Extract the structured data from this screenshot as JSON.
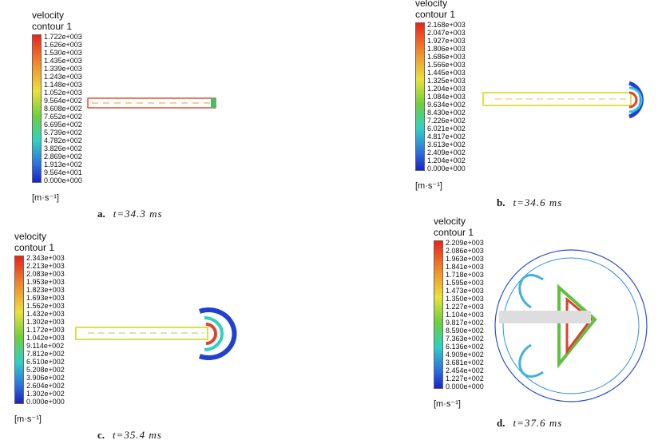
{
  "panels": [
    {
      "legend_title": [
        "velocity",
        "contour 1"
      ],
      "scale": [
        "1.722e+003",
        "1.626e+003",
        "1.530e+003",
        "1.435e+003",
        "1.339e+003",
        "1.243e+003",
        "1.148e+003",
        "1.052e+003",
        "9.564e+002",
        "8.608e+002",
        "7.652e+002",
        "6.695e+002",
        "5.739e+002",
        "4.782e+002",
        "3.826e+002",
        "2.869e+002",
        "1.913e+002",
        "9.564e+001",
        "0.000e+000"
      ],
      "unit": "[m·s⁻¹]",
      "caption": {
        "label": "a.",
        "time": "t=34.3 ms"
      }
    },
    {
      "legend_title": [
        "velocity",
        "contour 1"
      ],
      "scale": [
        "2.168e+003",
        "2.047e+003",
        "1.927e+003",
        "1.806e+003",
        "1.686e+003",
        "1.566e+003",
        "1.445e+003",
        "1.325e+003",
        "1.204e+003",
        "1.084e+003",
        "9.634e+002",
        "8.430e+002",
        "7.226e+002",
        "6.021e+002",
        "4.817e+002",
        "3.613e+002",
        "2.409e+002",
        "1.204e+002",
        "0.000e+000"
      ],
      "unit": "[m·s⁻¹]",
      "caption": {
        "label": "b.",
        "time": "t=34.6 ms"
      }
    },
    {
      "legend_title": [
        "velocity",
        "contour 1"
      ],
      "scale": [
        "2.343e+003",
        "2.213e+003",
        "2.083e+003",
        "1.953e+003",
        "1.823e+003",
        "1.693e+003",
        "1.562e+003",
        "1.432e+003",
        "1.302e+003",
        "1.172e+003",
        "1.042e+003",
        "9.114e+002",
        "7.812e+002",
        "6.510e+002",
        "5.208e+002",
        "3.906e+002",
        "2.604e+002",
        "1.302e+002",
        "0.000e+000"
      ],
      "unit": "[m·s⁻¹]",
      "caption": {
        "label": "c.",
        "time": "t=35.4 ms"
      }
    },
    {
      "legend_title": [
        "velocity",
        "contour 1"
      ],
      "scale": [
        "2.209e+003",
        "2.086e+003",
        "1.963e+003",
        "1.841e+003",
        "1.718e+003",
        "1.595e+003",
        "1.473e+003",
        "1.350e+003",
        "1.227e+003",
        "1.104e+003",
        "9.817e+002",
        "8.590e+002",
        "7.363e+002",
        "6.136e+002",
        "4.909e+002",
        "3.681e+002",
        "2.454e+002",
        "1.227e+002",
        "0.000e+000"
      ],
      "unit": "[m·s⁻¹]",
      "caption": {
        "label": "d.",
        "time": "t=37.6 ms"
      }
    }
  ]
}
